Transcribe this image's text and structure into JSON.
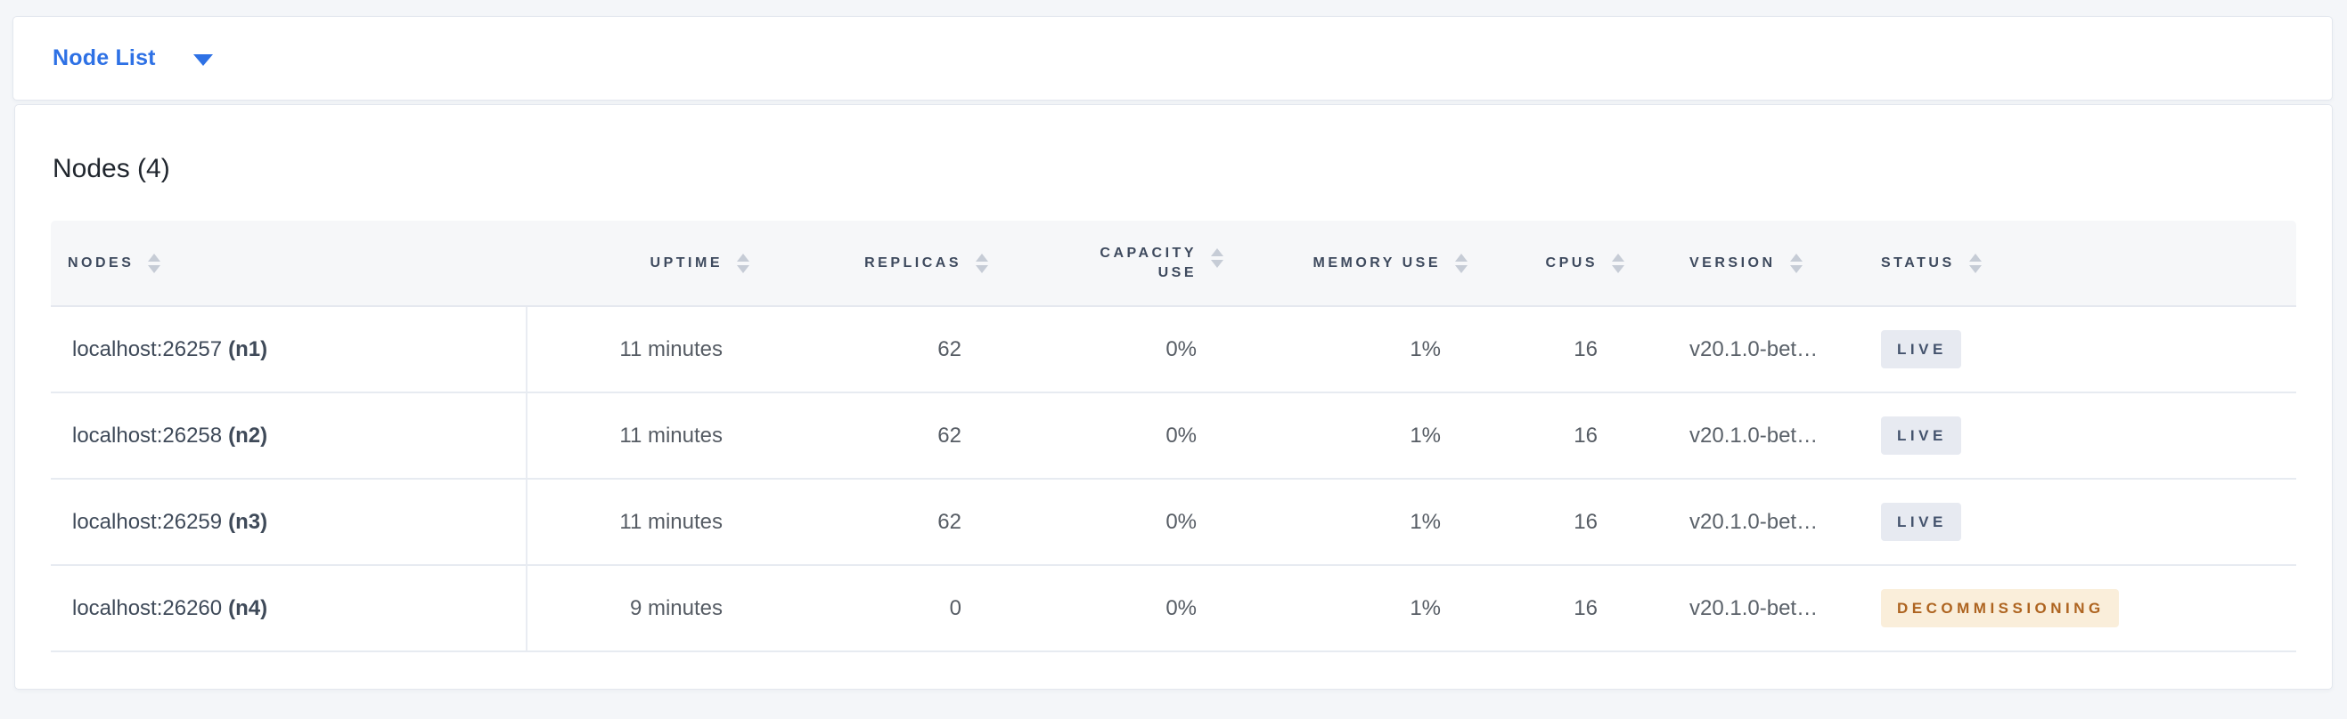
{
  "view_selector": {
    "label": "Node List"
  },
  "panel": {
    "title": "Nodes (4)",
    "table": {
      "columns": [
        {
          "key": "nodes",
          "label": "NODES"
        },
        {
          "key": "uptime",
          "label": "UPTIME"
        },
        {
          "key": "replicas",
          "label": "REPLICAS"
        },
        {
          "key": "capacity_use",
          "label": "CAPACITY USE"
        },
        {
          "key": "memory_use",
          "label": "MEMORY USE"
        },
        {
          "key": "cpus",
          "label": "CPUS"
        },
        {
          "key": "version",
          "label": "VERSION"
        },
        {
          "key": "status",
          "label": "STATUS"
        }
      ],
      "rows": [
        {
          "node_address": "localhost:26257",
          "node_id": "(n1)",
          "uptime": "11 minutes",
          "replicas": "62",
          "capacity_use": "0%",
          "memory_use": "1%",
          "cpus": "16",
          "version": "v20.1.0-bet…",
          "status": "LIVE"
        },
        {
          "node_address": "localhost:26258",
          "node_id": "(n2)",
          "uptime": "11 minutes",
          "replicas": "62",
          "capacity_use": "0%",
          "memory_use": "1%",
          "cpus": "16",
          "version": "v20.1.0-bet…",
          "status": "LIVE"
        },
        {
          "node_address": "localhost:26259",
          "node_id": "(n3)",
          "uptime": "11 minutes",
          "replicas": "62",
          "capacity_use": "0%",
          "memory_use": "1%",
          "cpus": "16",
          "version": "v20.1.0-bet…",
          "status": "LIVE"
        },
        {
          "node_address": "localhost:26260",
          "node_id": "(n4)",
          "uptime": "9 minutes",
          "replicas": "0",
          "capacity_use": "0%",
          "memory_use": "1%",
          "cpus": "16",
          "version": "v20.1.0-bet…",
          "status": "DECOMMISSIONING"
        }
      ]
    }
  },
  "icons": {
    "dropdown_caret": "caret-down-icon",
    "column_sort": "sort-arrows-icon"
  },
  "colors": {
    "accent": "#2e71e5",
    "live_bg": "#e7eaf1",
    "live_text": "#44536d",
    "decom_bg": "#faeeda",
    "decom_text": "#ae6420"
  }
}
